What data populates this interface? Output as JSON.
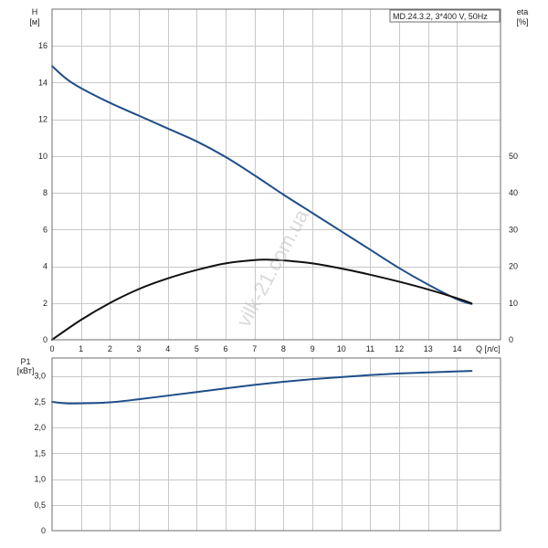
{
  "watermark": "vilk-21.com.ua",
  "chart_data": [
    {
      "type": "line",
      "title": "MD.24.3.2, 3*400 V, 50Hz",
      "xlabel": "Q [л/с]",
      "ylabel_line1": "H",
      "ylabel_line2": "[м]",
      "y2label_line1": "eta",
      "y2label_line2": "[%]",
      "xlim": [
        0,
        15.5
      ],
      "ylim": [
        0,
        18
      ],
      "y2lim": [
        0,
        90
      ],
      "xticks": [
        0,
        1,
        2,
        3,
        4,
        5,
        6,
        7,
        8,
        9,
        10,
        11,
        12,
        13,
        14
      ],
      "yticks": [
        0,
        2,
        4,
        6,
        8,
        10,
        12,
        14,
        16
      ],
      "y2ticks": [
        0,
        10,
        20,
        30,
        40,
        50
      ],
      "grid": true,
      "series": [
        {
          "name": "H",
          "axis": "left",
          "color": "#1f4e8a",
          "x": [
            0,
            0.5,
            1,
            2,
            3,
            4,
            5,
            6,
            7,
            8,
            9,
            10,
            11,
            12,
            13,
            14,
            14.5
          ],
          "y": [
            14.9,
            14.2,
            13.7,
            12.9,
            12.2,
            11.5,
            10.8,
            9.95,
            8.95,
            7.9,
            6.9,
            5.9,
            4.9,
            3.9,
            3.0,
            2.2,
            1.95
          ]
        },
        {
          "name": "eta",
          "axis": "right",
          "color": "#111111",
          "x": [
            0,
            1,
            2,
            3,
            4,
            5,
            6,
            7,
            7.5,
            8,
            9,
            10,
            11,
            12,
            13,
            14,
            14.5
          ],
          "y": [
            0,
            5.4,
            10.0,
            13.8,
            16.7,
            19.0,
            20.8,
            21.7,
            21.8,
            21.6,
            20.8,
            19.4,
            17.7,
            15.8,
            13.7,
            11.3,
            9.9
          ]
        }
      ]
    },
    {
      "type": "line",
      "ylabel_line1": "P1",
      "ylabel_line2": "[кВт]",
      "xlim": [
        0,
        15.5
      ],
      "ylim": [
        0,
        3.35
      ],
      "yticks": [
        0,
        0.5,
        1.0,
        1.5,
        2.0,
        2.5,
        3.0
      ],
      "ytick_labels": [
        "0",
        "0,5",
        "1,0",
        "1,5",
        "2,0",
        "2,5",
        "3,0"
      ],
      "grid": true,
      "series": [
        {
          "name": "P1",
          "axis": "left",
          "color": "#1f4e8a",
          "x": [
            0,
            0.5,
            1,
            2,
            3,
            4,
            5,
            6,
            7,
            8,
            9,
            10,
            11,
            12,
            13,
            14,
            14.5
          ],
          "y": [
            2.5,
            2.47,
            2.47,
            2.49,
            2.55,
            2.62,
            2.69,
            2.76,
            2.83,
            2.89,
            2.94,
            2.98,
            3.02,
            3.05,
            3.07,
            3.09,
            3.1
          ]
        }
      ]
    }
  ]
}
